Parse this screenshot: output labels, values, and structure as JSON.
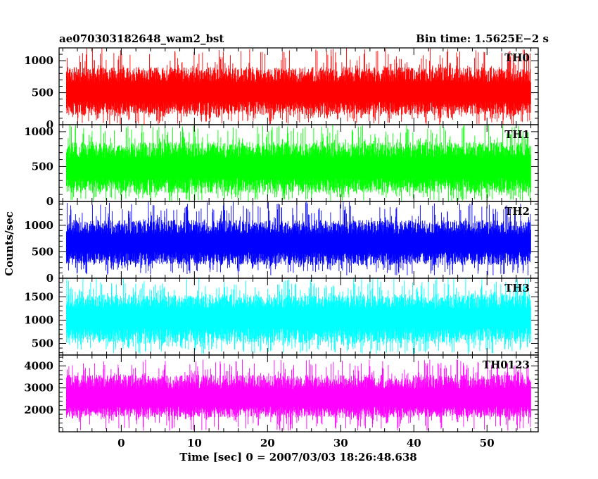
{
  "header": {
    "title": "ae070303182648_wam2_bst",
    "bin_time": "Bin time: 1.5625E−2 s"
  },
  "axes": {
    "ylabel": "Counts/sec",
    "xlabel": "Time [sec] 0 = 2007/03/03 18:26:48.638"
  },
  "chart_data": {
    "type": "line",
    "title": "ae070303182648_wam2_bst",
    "subtitle": "Bin time: 1.5625E−2 s",
    "xlabel": "Time [sec] 0 = 2007/03/03 18:26:48.638",
    "ylabel": "Counts/sec",
    "xlim": [
      -8.5,
      57
    ],
    "x_data_range": [
      -7.5,
      56
    ],
    "bin_time": 0.015625,
    "x_ticks": [
      0,
      10,
      20,
      30,
      40,
      50
    ],
    "x_tick_labels": [
      "0",
      "10",
      "20",
      "30",
      "40",
      "50"
    ],
    "grid": false,
    "panels": [
      {
        "name": "TH0",
        "color": "#ff0000",
        "ylim": [
          0,
          1200
        ],
        "y_ticks": [
          0,
          500,
          1000
        ],
        "y_tick_labels": [
          "0",
          "500",
          "1000"
        ],
        "min": 0,
        "low": 150,
        "mean": 500,
        "high": 900,
        "max": 1200
      },
      {
        "name": "TH1",
        "color": "#00ff00",
        "ylim": [
          0,
          1100
        ],
        "y_ticks": [
          0,
          500,
          1000
        ],
        "y_tick_labels": [
          "0",
          "500",
          "1000"
        ],
        "min": 0,
        "low": 120,
        "mean": 480,
        "high": 850,
        "max": 1100
      },
      {
        "name": "TH2",
        "color": "#0000ff",
        "ylim": [
          0,
          1450
        ],
        "y_ticks": [
          0,
          500,
          1000
        ],
        "y_tick_labels": [
          "0",
          "500",
          "1000"
        ],
        "min": 50,
        "low": 250,
        "mean": 650,
        "high": 1100,
        "max": 1450
      },
      {
        "name": "TH3",
        "color": "#00ffff",
        "ylim": [
          250,
          1900
        ],
        "y_ticks": [
          500,
          1000,
          1500
        ],
        "y_tick_labels": [
          "500",
          "1000",
          "1500"
        ],
        "min": 270,
        "low": 500,
        "mean": 1050,
        "high": 1550,
        "max": 1900
      },
      {
        "name": "TH0123",
        "color": "#ff00ff",
        "ylim": [
          1000,
          4500
        ],
        "y_ticks": [
          2000,
          3000,
          4000
        ],
        "y_tick_labels": [
          "2000",
          "3000",
          "4000"
        ],
        "min": 1050,
        "low": 1650,
        "mean": 2500,
        "high": 3600,
        "max": 4300
      }
    ]
  }
}
